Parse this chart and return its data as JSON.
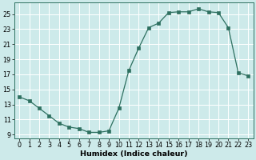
{
  "x": [
    0,
    1,
    2,
    3,
    4,
    5,
    6,
    7,
    8,
    9,
    10,
    11,
    12,
    13,
    14,
    15,
    16,
    17,
    18,
    19,
    20,
    21,
    22,
    23
  ],
  "y": [
    14.0,
    13.5,
    12.5,
    11.5,
    10.5,
    10.0,
    9.8,
    9.3,
    9.3,
    9.5,
    12.5,
    17.5,
    20.5,
    23.2,
    23.8,
    25.2,
    25.3,
    25.3,
    25.7,
    25.3,
    25.2,
    23.2,
    17.2,
    16.8
  ],
  "xlabel": "Humidex (Indice chaleur)",
  "ylabel": "",
  "xlim": [
    -0.5,
    23.5
  ],
  "ylim": [
    8.5,
    26.5
  ],
  "yticks": [
    9,
    11,
    13,
    15,
    17,
    19,
    21,
    23,
    25
  ],
  "xticks": [
    0,
    1,
    2,
    3,
    4,
    5,
    6,
    7,
    8,
    9,
    10,
    11,
    12,
    13,
    14,
    15,
    16,
    17,
    18,
    19,
    20,
    21,
    22,
    23
  ],
  "line_color": "#2e7060",
  "marker": "s",
  "marker_size": 2.2,
  "bg_color": "#cdeaea",
  "grid_color": "#ffffff",
  "xlabel_fontsize": 6.8,
  "tick_fontsize": 5.8
}
